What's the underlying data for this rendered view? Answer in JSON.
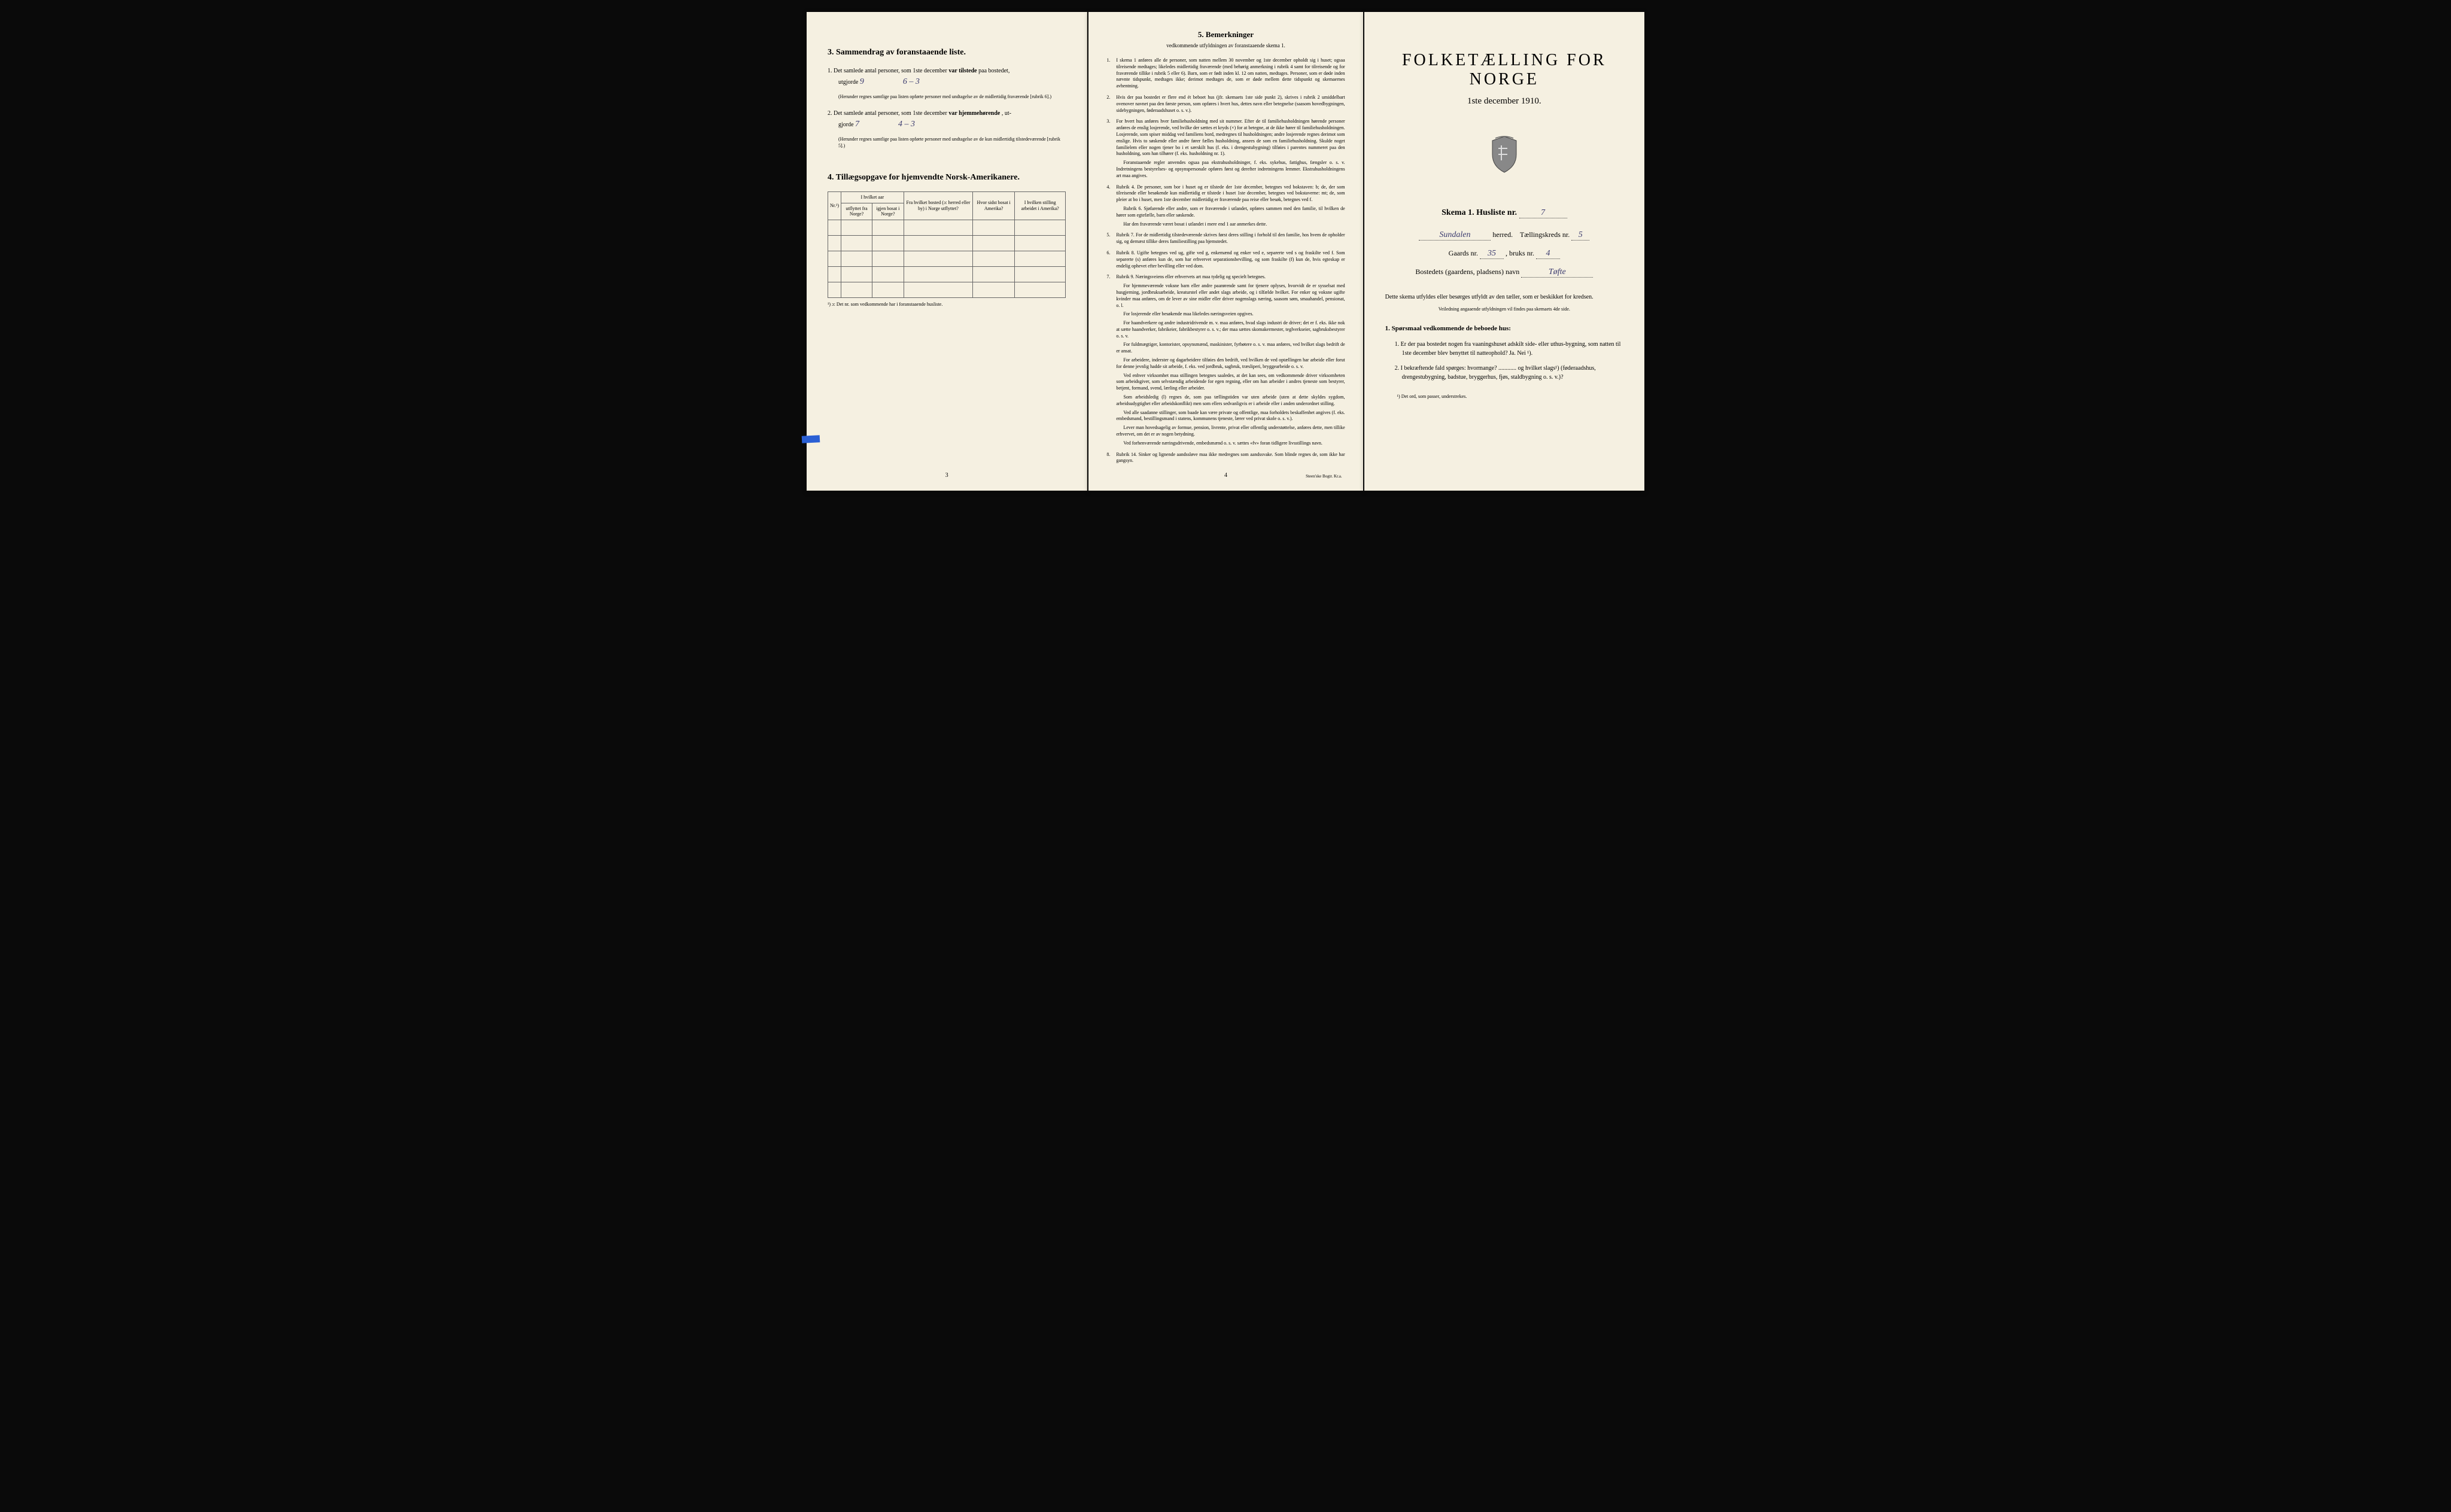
{
  "colors": {
    "paper": "#f5f0e1",
    "ink": "#2a2a2a",
    "handwriting": "#3a3a6e",
    "border": "#666666",
    "background": "#0a0a0a"
  },
  "page_left": {
    "section3_title": "3.   Sammendrag av foranstaaende liste.",
    "item1_pre": "1.  Det samlede antal personer, som 1ste december",
    "item1_bold": "var tilstede",
    "item1_post": "paa bostedet,",
    "item1_line2_pre": "utgjorde",
    "item1_value": "9",
    "item1_value2": "6 – 3",
    "item1_note": "(Herunder regnes samtlige paa listen opførte personer med undtagelse av de midlertidig fraværende [rubrik 6].)",
    "item2_pre": "2.  Det samlede antal personer, som 1ste december",
    "item2_bold": "var hjemmehørende",
    "item2_post": ", ut-",
    "item2_line2_pre": "gjorde",
    "item2_value": "7",
    "item2_value2": "4 – 3",
    "item2_note": "(Herunder regnes samtlige paa listen opførte personer med undtagelse av de kun midlertidig tilstedeværende [rubrik 5].)",
    "section4_title": "4.   Tillægsopgave for hjemvendte Norsk-Amerikanere.",
    "table_headers": {
      "nr": "Nr.¹)",
      "group1": "I hvilket aar",
      "col1": "utflyttet fra Norge?",
      "col2": "igjen bosat i Norge?",
      "col3": "Fra hvilket bosted (ɔ: herred eller by) i Norge utflyttet?",
      "col4": "Hvor sidst bosat i Amerika?",
      "col5": "I hvilken stilling arbeidet i Amerika?"
    },
    "table_footnote": "¹) ɔ: Det nr. som vedkommende har i foranstaaende husliste.",
    "page_num": "3"
  },
  "page_middle": {
    "title": "5.   Bemerkninger",
    "subtitle": "vedkommende utfyldningen av foranstaaende skema 1.",
    "items": [
      {
        "n": "1.",
        "text": "I skema 1 anføres alle de personer, som natten mellem 30 november og 1ste december opholdt sig i huset; ogsaa tilreisende medtages; likeledes midlertidig fraværende (med behørig anmerkning i rubrik 4 samt for tilreisende og for fraværende tillike i rubrik 5 eller 6). Barn, som er født inden kl. 12 om natten, medtages. Personer, som er døde inden nævnte tidspunkt, medtages ikke; derimot medtages de, som er døde mellem dette tidspunkt og skemaernes avhentning."
      },
      {
        "n": "2.",
        "text": "Hvis der paa bostedet er flere end ét beboet hus (jfr. skemaets 1ste side punkt 2), skrives i rubrik 2 umiddelbart ovenover navnet paa den første person, som opføres i hvert hus, dettes navn eller betegnelse (saasom hovedbygningen, sidebygningen, føderaadshuset o. s. v.)."
      },
      {
        "n": "3.",
        "text": "For hvert hus anføres hver familiehusholdning med sit nummer. Efter de til familiehusholdningen hørende personer anføres de enslig losjerende, ved hvilke der sættes et kryds (×) for at betegne, at de ikke hører til familiehusholdningen. Losjerende, som spiser middag ved familiens bord, medregnes til husholdningen; andre losjerende regnes derimot som enslige. Hvis to søskende eller andre fører fælles husholdning, ansees de som en familiehusholdning. Skulde noget familielem eller nogen tjener bo i et særskilt hus (f. eks. i drengestu­bygning) tilføies i parentes nummeret paa den husholdning, som han tilhører (f. eks. husholdning nr. 1).",
        "paras": [
          "Foranstaaende regler anvendes ogsaa paa ekstrahusholdninger, f. eks. sykehus, fattighus, fængsler o. s. v. Indretningens bestyrelses- og opsynspersonale opføres først og derefter indretningens lemmer. Ekstrahusholdningens art maa angives."
        ]
      },
      {
        "n": "4.",
        "text": "Rubrik 4. De personer, som bor i huset og er tilstede der 1ste december, betegnes ved bokstaven: b; de, der som tilreisende eller besøkende kun midlertidig er tilstede i huset 1ste december, betegnes ved bokstaverne: mt; de, som pleier at bo i huset, men 1ste december midlertidig er fraværende paa reise eller besøk, betegnes ved f.",
        "paras": [
          "Rubrik 6. Sjøfarende eller andre, som er fraværende i utlandet, opføres sammen med den familie, til hvilken de hører som egtefælle, barn eller søskende.",
          "Har den fraværende været bosat i utlandet i mere end 1 aar anmerkes dette."
        ]
      },
      {
        "n": "5.",
        "text": "Rubrik 7. For de midlertidig tilstedeværende skrives først deres stilling i forhold til den familie, hos hvem de opholder sig, og dernæst tillike deres familiestilling paa hjemstedet."
      },
      {
        "n": "6.",
        "text": "Rubrik 8. Ugifte betegnes ved ug, gifte ved g, enkemænd og enker ved e, separerte ved s og fraskilte ved f. Som separerte (s) anføres kun de, som har erhvervet separations­bevilling, og som fraskilte (f) kun de, hvis egteskap er endelig ophevet efter bevilling eller ved dom."
      },
      {
        "n": "7.",
        "text": "Rubrik 9. Næringsveiens eller erhvervets art maa tydelig og specielt betegnes.",
        "paras": [
          "For hjemmeværende voksne barn eller andre paarørende samt for tjenere oplyses, hvorvidt de er sysselsat med husgjerning, jordbruksarbeide, kreaturstel eller andet slags arbeide, og i tilfælde hvilket. For enker og voksne ugifte kvinder maa anføres, om de lever av sine midler eller driver nogenslags næring, saasom søm, smaahandel, pensionat, o. l.",
          "For losjerende eller besøkende maa likeledes næringsveien opgives.",
          "For haandverkere og andre industridrivende m. v. maa anføres, hvad slags industri de driver; det er f. eks. ikke nok at sætte haandverker, fabrikeier, fabrikbestyrer o. s. v.; der maa sættes skomakermester, teglverkseier, sagbruksbestyrer o. s. v.",
          "For fuldmægtiger, kontorister, opsynsmænd, maskinister, fyrbøtere o. s. v. maa anføres, ved hvilket slags bedrift de er ansat.",
          "For arbeidere, inderster og dagarbeidere tilføies den bedrift, ved hvilken de ved op­tællingen har arbeide eller forut for denne jevnlig hadde sit arbeide, f. eks. ved jordbruk, sagbruk, træsliperi, bryggearbeide o. s. v.",
          "Ved enhver virksomhet maa stillingen betegnes saaledes, at det kan sees, om ved­kommende driver virksomheten som arbeidsgiver, som selvstændig arbeidende for egen regning, eller om han arbeider i andres tjeneste som bestyrer, betjent, formand, svend, lærling eller arbeider.",
          "Som arbeidsledig (l) regnes de, som paa tællingstiden var uten arbeide (uten at dette skyldes sygdom, arbeidsudygtighet eller arbeidskonflikt) men som ellers sedvanligvis er i arbeide eller i anden underordnet stilling.",
          "Ved alle saadanne stillinger, som baade kan være private og offentlige, maa for­holdets beskaffenhet angives (f. eks. embedsmand, bestillingsmand i statens, kommunens tjeneste, lærer ved privat skole o. s. v.).",
          "Lever man hovedsagelig av formue, pension, livrente, privat eller offentlig under­støttelse, anføres dette, men tillike erhvervet, om det er av nogen betydning.",
          "Ved forhenværende næringsdrivende, embedsmænd o. s. v. sættes «fv» foran tidligere livsstillings navn."
        ]
      },
      {
        "n": "8.",
        "text": "Rubrik 14. Sinker og lignende aandssløve maa ikke medregnes som aandssvake. Som blinde regnes de, som ikke har gangsyn."
      }
    ],
    "page_num": "4",
    "printer": "Steen'ske Bogtr. Kr.a."
  },
  "page_right": {
    "big_title": "FOLKETÆLLING FOR NORGE",
    "date": "1ste december 1910.",
    "skema_pre": "Skema 1.  Husliste nr.",
    "skema_val": "7",
    "herred_val": "Sundalen",
    "herred_label": "herred.",
    "kreds_label": "Tællingskreds nr.",
    "kreds_val": "5",
    "gaards_label": "Gaards nr.",
    "gaards_val": "35",
    "bruks_label": ", bruks nr.",
    "bruks_val": "4",
    "bosted_label": "Bostedets (gaardens, pladsens) navn",
    "bosted_val": "Tøfte",
    "instruct": "Dette skema utfyldes eller besørges utfyldt av den tæller, som er beskikket for kredsen.",
    "instruct_small": "Veiledning angaaende utfyldningen vil findes paa skemaets 4de side.",
    "q_title": "1. Spørsmaal vedkommende de beboede hus:",
    "q1": "1. Er der paa bostedet nogen fra vaaningshuset adskilt side- eller uthus-bygning, som natten til 1ste december blev benyttet til natteophold?   Ja.   Nei ¹).",
    "q2": "2. I bekræftende fald spørges: hvormange? ............ og hvilket slags¹) (føderaadshus, drengestubygning, badstue, bryggerhus, fjøs, stald­bygning o. s. v.)?",
    "footnote": "¹) Det ord, som passer, understrekes."
  }
}
